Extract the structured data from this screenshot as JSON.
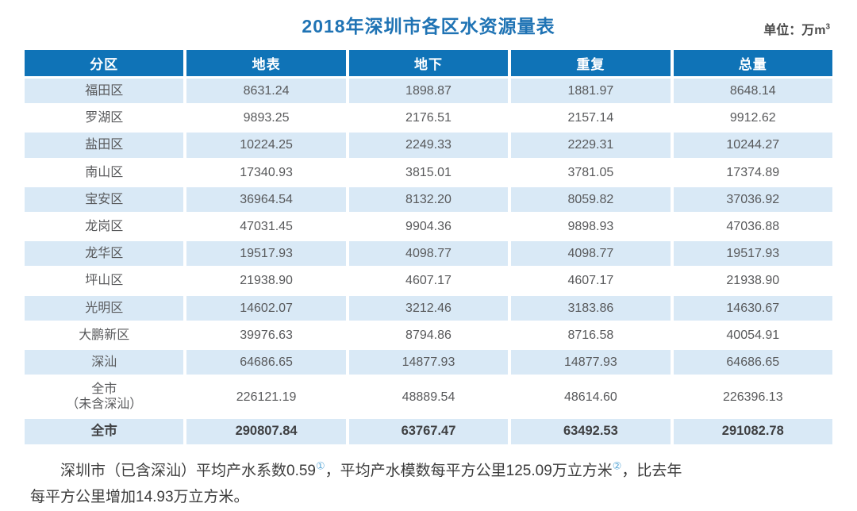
{
  "title": "2018年深圳市各区水资源量表",
  "unit": {
    "prefix": "单位：万m",
    "superscript": "3"
  },
  "colors": {
    "header_bg": "#0f73b7",
    "row_alt_bg": "#d9e9f6",
    "title_blue": "#1f73b4",
    "footnote_ref_blue": "#58a6d6"
  },
  "table": {
    "headers": [
      "分区",
      "地表",
      "地下",
      "重复",
      "总量"
    ],
    "rows": [
      [
        "福田区",
        "8631.24",
        "1898.87",
        "1881.97",
        "8648.14"
      ],
      [
        "罗湖区",
        "9893.25",
        "2176.51",
        "2157.14",
        "9912.62"
      ],
      [
        "盐田区",
        "10224.25",
        "2249.33",
        "2229.31",
        "10244.27"
      ],
      [
        "南山区",
        "17340.93",
        "3815.01",
        "3781.05",
        "17374.89"
      ],
      [
        "宝安区",
        "36964.54",
        "8132.20",
        "8059.82",
        "37036.92"
      ],
      [
        "龙岗区",
        "47031.45",
        "9904.36",
        "9898.93",
        "47036.88"
      ],
      [
        "龙华区",
        "19517.93",
        "4098.77",
        "4098.77",
        "19517.93"
      ],
      [
        "坪山区",
        "21938.90",
        "4607.17",
        "4607.17",
        "21938.90"
      ],
      [
        "光明区",
        "14602.07",
        "3212.46",
        "3183.86",
        "14630.67"
      ],
      [
        "大鹏新区",
        "39976.63",
        "8794.86",
        "8716.58",
        "40054.91"
      ],
      [
        "深汕",
        "64686.65",
        "14877.93",
        "14877.93",
        "64686.65"
      ],
      [
        "全市\n（未含深汕）",
        "226121.19",
        "48889.54",
        "48614.60",
        "226396.13"
      ],
      [
        "全市",
        "290807.84",
        "63767.47",
        "63492.53",
        "291082.78"
      ]
    ]
  },
  "footnote": {
    "part1": "深圳市（已含深汕）平均产水系数0.59",
    "ref1": "①",
    "part2": "，平均产水模数每平方公里125.09万立方米",
    "ref2": "②",
    "part3": "，比去年",
    "part4": "每平方公里增加14.93万立方米。"
  }
}
